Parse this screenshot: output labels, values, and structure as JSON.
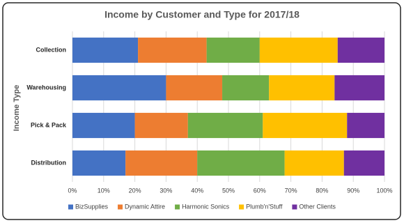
{
  "chart_data": {
    "type": "stacked-bar-horizontal-100",
    "title": "Income by Customer and Type for 2017/18",
    "y_label": "Income Type",
    "categories": [
      "Collection",
      "Warehousing",
      "Pick & Pack",
      "Distribution"
    ],
    "series": [
      {
        "name": "BizSupplies",
        "color": "#4472c4",
        "values": [
          21,
          30,
          20,
          17
        ]
      },
      {
        "name": "Dynamic Attire",
        "color": "#ed7d31",
        "values": [
          22,
          18,
          17,
          23
        ]
      },
      {
        "name": "Harmonic Sonics",
        "color": "#70ad47",
        "values": [
          17,
          15,
          24,
          28
        ]
      },
      {
        "name": "Plumb'n'Stuff",
        "color": "#ffc000",
        "values": [
          25,
          21,
          27,
          19
        ]
      },
      {
        "name": "Other Clients",
        "color": "#7030a0",
        "values": [
          15,
          16,
          12,
          13
        ]
      }
    ],
    "xlim": [
      0,
      100
    ],
    "xticks": [
      {
        "value": 0,
        "label": "0%"
      },
      {
        "value": 10,
        "label": "10%"
      },
      {
        "value": 20,
        "label": "20%"
      },
      {
        "value": 30,
        "label": "30%"
      },
      {
        "value": 40,
        "label": "40%"
      },
      {
        "value": 50,
        "label": "50%"
      },
      {
        "value": 60,
        "label": "60%"
      },
      {
        "value": 70,
        "label": "70%"
      },
      {
        "value": 80,
        "label": "80%"
      },
      {
        "value": 90,
        "label": "90%"
      },
      {
        "value": 100,
        "label": "100%"
      }
    ],
    "grid": true,
    "legend": "bottom"
  }
}
